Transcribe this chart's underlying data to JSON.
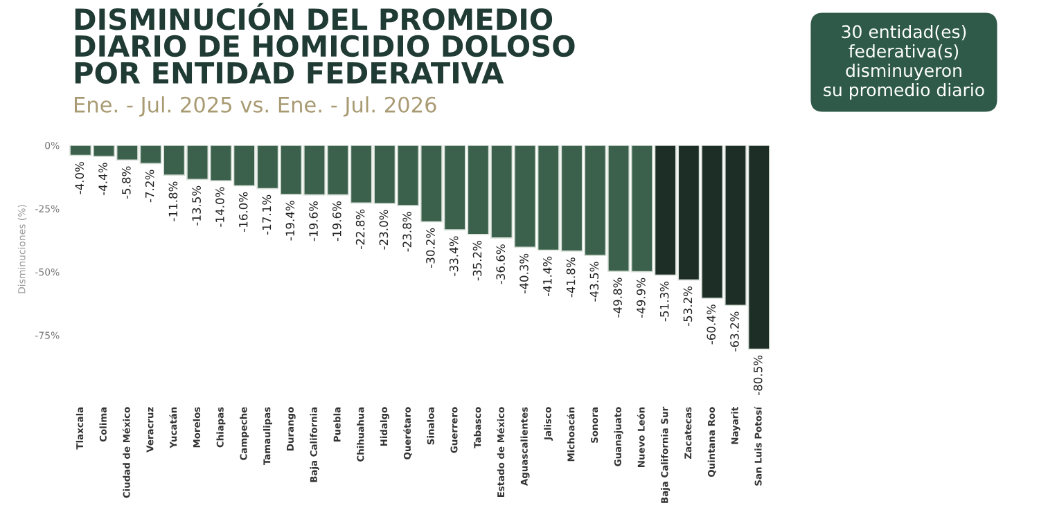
{
  "chart_data": {
    "type": "bar",
    "title": "DISMINUCIÓN DEL PROMEDIO\nDIARIO DE HOMICIDIO DOLOSO\nPOR ENTIDAD FEDERATIVA",
    "subtitle": "Ene. - Jul. 2025 vs. Ene. - Jul. 2026",
    "ylabel": "Disminuciones (%)",
    "annotations": [
      "30 entidad(es)\nfederativa(s)\ndisminuyeron\nsu promedio diario"
    ],
    "categories": [
      "Tlaxcala",
      "Colima",
      "Ciudad de México",
      "Veracruz",
      "Yucatán",
      "Morelos",
      "Chiapas",
      "Campeche",
      "Tamaulipas",
      "Durango",
      "Baja California",
      "Puebla",
      "Chihuahua",
      "Hidalgo",
      "Querétaro",
      "Sinaloa",
      "Guerrero",
      "Tabasco",
      "Estado de México",
      "Aguascalientes",
      "Jalisco",
      "Michoacán",
      "Sonora",
      "Guanajuato",
      "Nuevo León",
      "Baja California Sur",
      "Zacatecas",
      "Quintana Roo",
      "Nayarit",
      "San Luis Potosí"
    ],
    "values": [
      -4.0,
      -4.4,
      -5.8,
      -7.2,
      -11.8,
      -13.5,
      -14.0,
      -16.0,
      -17.1,
      -19.4,
      -19.6,
      -19.6,
      -22.8,
      -23.0,
      -23.8,
      -30.2,
      -33.4,
      -35.2,
      -36.6,
      -40.3,
      -41.4,
      -41.8,
      -43.5,
      -49.8,
      -49.9,
      -51.3,
      -53.2,
      -60.4,
      -63.2,
      -80.5
    ],
    "value_labels": [
      "-4.0%",
      "-4.4%",
      "-5.8%",
      "-7.2%",
      "-11.8%",
      "-13.5%",
      "-14.0%",
      "-16.0%",
      "-17.1%",
      "-19.4%",
      "-19.6%",
      "-19.6%",
      "-22.8%",
      "-23.0%",
      "-23.8%",
      "-30.2%",
      "-33.4%",
      "-35.2%",
      "-36.6%",
      "-40.3%",
      "-41.4%",
      "-41.8%",
      "-43.5%",
      "-49.8%",
      "-49.9%",
      "-51.3%",
      "-53.2%",
      "-60.4%",
      "-63.2%",
      "-80.5%"
    ],
    "colors": [
      "#3b614d",
      "#3b614d",
      "#3b614d",
      "#3b614d",
      "#3b614d",
      "#3b614d",
      "#3b614d",
      "#3b614d",
      "#3b614d",
      "#3b614d",
      "#3b614d",
      "#3b614d",
      "#3b614d",
      "#3b614d",
      "#3b614d",
      "#3b614d",
      "#3b614d",
      "#3b614d",
      "#3b614d",
      "#3b614d",
      "#3b614d",
      "#3b614d",
      "#3b614d",
      "#3b614d",
      "#3b614d",
      "#1c2e25",
      "#1c2e25",
      "#1c2e25",
      "#1c2e25",
      "#1c2e25"
    ],
    "ylim": [
      -82,
      0
    ],
    "yticks": [
      {
        "value": 0,
        "label": "0%"
      },
      {
        "value": -25,
        "label": "-25%"
      },
      {
        "value": -50,
        "label": "-50%"
      },
      {
        "value": -75,
        "label": "-75%"
      }
    ],
    "grid": false,
    "legend": false
  }
}
